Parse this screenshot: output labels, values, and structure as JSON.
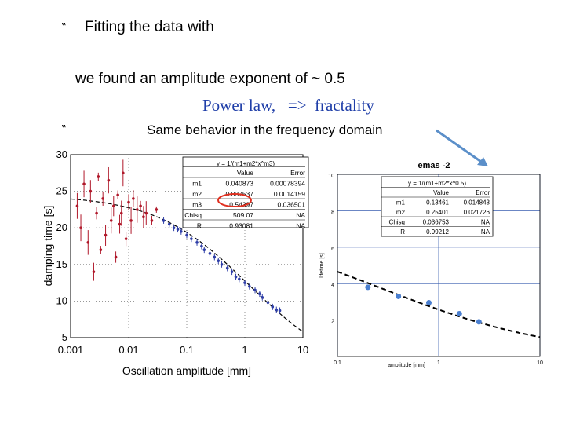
{
  "slide": {
    "bullet_glyph": "‟",
    "line1": "Fitting the data with",
    "line2": "we found an amplitude exponent of ~ 0.5",
    "line3": "Power law,   =>  fractality",
    "line4": "Same behavior in the frequency domain"
  },
  "colors": {
    "accent_text": "#1f3ea8",
    "arrow": "#5b8fc9",
    "highlight_circle": "#e03020"
  },
  "chart_data": [
    {
      "type": "scatter",
      "xscale": "log",
      "xlabel": "Oscillation amplitude [mm]",
      "ylabel": "damping time [s]",
      "xlim": [
        0.001,
        10
      ],
      "ylim": [
        5,
        30
      ],
      "x_ticks": [
        "0.001",
        "0.01",
        "0.1",
        "1",
        "10"
      ],
      "y_ticks": [
        "5",
        "10",
        "15",
        "20",
        "25",
        "30"
      ],
      "fit_table": {
        "formula": "y = 1/(m1+m2*x^m3)",
        "headers": [
          "",
          "Value",
          "Error"
        ],
        "rows": [
          [
            "m1",
            "0.040873",
            "0.00078394"
          ],
          [
            "m2",
            "0.037537",
            "0.0014159"
          ],
          [
            "m3",
            "0.54397",
            "0.036501"
          ],
          [
            "Chisq",
            "509.07",
            "NA"
          ],
          [
            "R",
            "0.93081",
            "NA"
          ]
        ]
      },
      "series": [
        {
          "color": "#b0182a",
          "points": [
            [
              0.0013,
              23
            ],
            [
              0.0015,
              20
            ],
            [
              0.0017,
              26
            ],
            [
              0.002,
              18
            ],
            [
              0.0022,
              25
            ],
            [
              0.0025,
              14
            ],
            [
              0.0028,
              22
            ],
            [
              0.003,
              27
            ],
            [
              0.0033,
              17
            ],
            [
              0.0036,
              24
            ],
            [
              0.004,
              19
            ],
            [
              0.0045,
              26.5
            ],
            [
              0.005,
              21
            ],
            [
              0.0055,
              23
            ],
            [
              0.006,
              16
            ],
            [
              0.0065,
              24.5
            ],
            [
              0.007,
              20.5
            ],
            [
              0.0075,
              22
            ],
            [
              0.008,
              27.5
            ],
            [
              0.009,
              18.5
            ],
            [
              0.01,
              23.5
            ],
            [
              0.011,
              21
            ],
            [
              0.012,
              24
            ],
            [
              0.014,
              22.5
            ],
            [
              0.016,
              23
            ],
            [
              0.018,
              21.5
            ],
            [
              0.02,
              22
            ],
            [
              0.025,
              21
            ],
            [
              0.03,
              22.5
            ]
          ]
        },
        {
          "color": "#2f3fa8",
          "points": [
            [
              0.04,
              21
            ],
            [
              0.05,
              20.5
            ],
            [
              0.06,
              20
            ],
            [
              0.07,
              19.8
            ],
            [
              0.08,
              19.5
            ],
            [
              0.1,
              19
            ],
            [
              0.12,
              18.5
            ],
            [
              0.15,
              18
            ],
            [
              0.18,
              17.5
            ],
            [
              0.2,
              17
            ],
            [
              0.25,
              16.5
            ],
            [
              0.3,
              16
            ],
            [
              0.35,
              15.5
            ],
            [
              0.4,
              15
            ],
            [
              0.5,
              14.5
            ],
            [
              0.6,
              14
            ],
            [
              0.7,
              13.3
            ],
            [
              0.8,
              13
            ],
            [
              1.0,
              12.5
            ],
            [
              1.2,
              12
            ],
            [
              1.5,
              11.5
            ],
            [
              1.8,
              11
            ],
            [
              2.0,
              10.5
            ],
            [
              2.5,
              9.8
            ],
            [
              3.0,
              9.2
            ],
            [
              3.5,
              8.8
            ],
            [
              4.0,
              8.7
            ]
          ]
        }
      ],
      "fit_curve": {
        "m1": 0.040873,
        "m2": 0.037537,
        "m3": 0.54397,
        "style": "dashed"
      }
    },
    {
      "type": "scatter",
      "title": "emas -2",
      "xscale": "log",
      "xlabel": "amplitude [mm]",
      "ylabel": "lifetime [s]",
      "xlim": [
        0.1,
        10
      ],
      "ylim": [
        0,
        10
      ],
      "x_ticks": [
        "0.1",
        "1",
        "10"
      ],
      "y_ticks": [
        "2",
        "4",
        "6",
        "8",
        "10"
      ],
      "fit_table": {
        "formula": "y = 1/(m1+m2*x^0.5)",
        "headers": [
          "",
          "Value",
          "Error"
        ],
        "rows": [
          [
            "m1",
            "0.13461",
            "0.014843"
          ],
          [
            "m2",
            "0.25401",
            "0.021726"
          ],
          [
            "Chisq",
            "0.036753",
            "NA"
          ],
          [
            "R",
            "0.99212",
            "NA"
          ]
        ]
      },
      "series": [
        {
          "color": "#4a7fd0",
          "points": [
            [
              0.2,
              3.8
            ],
            [
              0.4,
              3.3
            ],
            [
              0.8,
              2.95
            ],
            [
              1.6,
              2.35
            ],
            [
              2.5,
              1.9
            ]
          ]
        }
      ],
      "fit_curve": {
        "m1": 0.13461,
        "m2": 0.25401,
        "m3": 0.5,
        "style": "dashed"
      }
    }
  ]
}
